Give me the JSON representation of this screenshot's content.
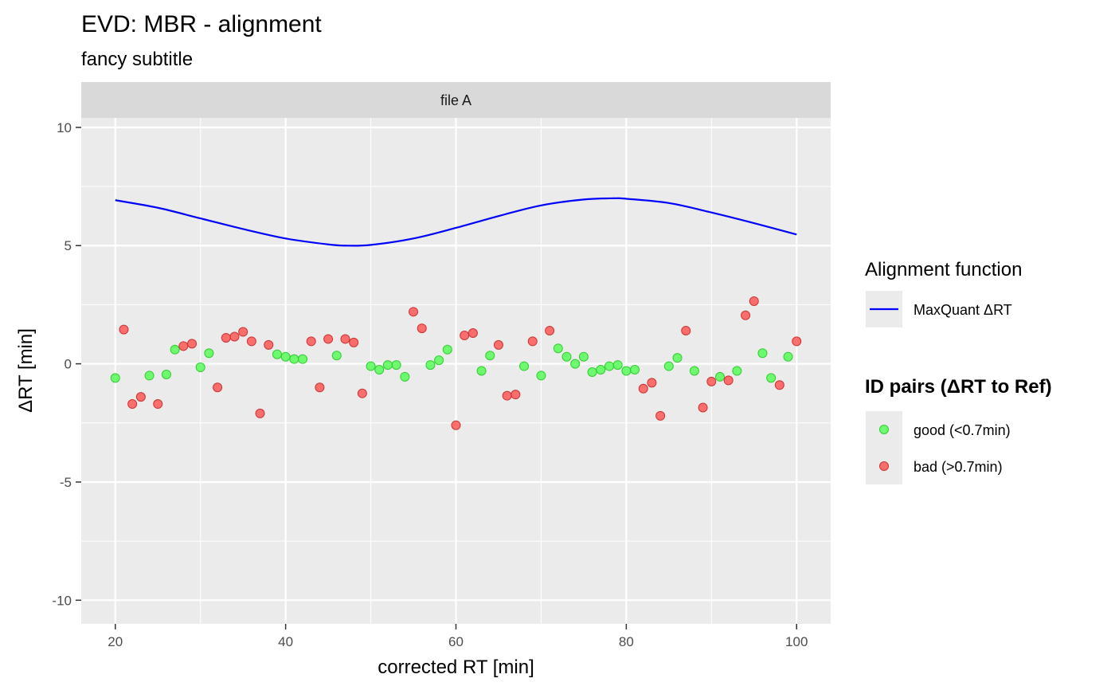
{
  "chart_data": {
    "type": "scatter",
    "title": "EVD: MBR - alignment",
    "subtitle": "fancy subtitle",
    "facet": "file A",
    "xlabel": "corrected RT [min]",
    "ylabel": "ΔRT [min]",
    "xlim": [
      16,
      104
    ],
    "ylim": [
      -11,
      10.4
    ],
    "xticks": [
      20,
      40,
      60,
      80,
      100
    ],
    "xtick_labels": [
      "20",
      "40",
      "60",
      "80",
      "100"
    ],
    "yticks": [
      10,
      5,
      0,
      -5,
      -10
    ],
    "ytick_labels": [
      "10",
      "5",
      "0",
      "-5",
      "-10"
    ],
    "grid": true,
    "legend_position": "right",
    "colors": {
      "panel": "#ebebeb",
      "strip": "#d9d9d9",
      "grid": "#ffffff",
      "line": "#0000ff",
      "good": "#44ff44",
      "bad": "#ff4444"
    },
    "line_series": {
      "name": "MaxQuant ΔRT",
      "x": [
        20,
        25,
        30,
        35,
        40,
        45,
        47,
        50,
        55,
        60,
        65,
        70,
        75,
        78.5,
        80,
        85,
        90,
        95,
        100
      ],
      "y": [
        6.92,
        6.6,
        6.15,
        5.7,
        5.3,
        5.05,
        5.0,
        5.03,
        5.3,
        5.75,
        6.25,
        6.7,
        6.95,
        7.0,
        6.98,
        6.8,
        6.4,
        5.95,
        5.47
      ]
    },
    "legend_line": {
      "title": "Alignment function",
      "label": "MaxQuant ΔRT"
    },
    "legend_points": {
      "title": "ID pairs (ΔRT to Ref)",
      "good_label": "good (<0.7min)",
      "bad_label": "bad (>0.7min)"
    },
    "series": [
      {
        "name": "good (<0.7min)",
        "points": [
          [
            20,
            -0.6
          ],
          [
            24,
            -0.5
          ],
          [
            26,
            -0.45
          ],
          [
            27,
            0.6
          ],
          [
            30,
            -0.15
          ],
          [
            31,
            0.45
          ],
          [
            39,
            0.4
          ],
          [
            40,
            0.3
          ],
          [
            41,
            0.2
          ],
          [
            42,
            0.2
          ],
          [
            46,
            0.35
          ],
          [
            50,
            -0.1
          ],
          [
            51,
            -0.25
          ],
          [
            52,
            -0.05
          ],
          [
            53,
            -0.05
          ],
          [
            54,
            -0.55
          ],
          [
            57,
            -0.05
          ],
          [
            58,
            0.15
          ],
          [
            59,
            0.6
          ],
          [
            63,
            -0.3
          ],
          [
            64,
            0.35
          ],
          [
            68,
            -0.1
          ],
          [
            70,
            -0.5
          ],
          [
            72,
            0.65
          ],
          [
            73,
            0.3
          ],
          [
            74,
            0.0
          ],
          [
            75,
            0.3
          ],
          [
            76,
            -0.35
          ],
          [
            77,
            -0.25
          ],
          [
            78,
            -0.1
          ],
          [
            79,
            -0.05
          ],
          [
            80,
            -0.3
          ],
          [
            81,
            -0.25
          ],
          [
            85,
            -0.1
          ],
          [
            86,
            0.25
          ],
          [
            88,
            -0.3
          ],
          [
            91,
            -0.55
          ],
          [
            93,
            -0.3
          ],
          [
            96,
            0.45
          ],
          [
            97,
            -0.6
          ],
          [
            99,
            0.3
          ]
        ]
      },
      {
        "name": "bad (>0.7min)",
        "points": [
          [
            21,
            1.45
          ],
          [
            22,
            -1.7
          ],
          [
            23,
            -1.4
          ],
          [
            25,
            -1.7
          ],
          [
            28,
            0.75
          ],
          [
            29,
            0.85
          ],
          [
            32,
            -1.0
          ],
          [
            33,
            1.1
          ],
          [
            34,
            1.15
          ],
          [
            35,
            1.35
          ],
          [
            36,
            0.95
          ],
          [
            37,
            -2.1
          ],
          [
            38,
            0.8
          ],
          [
            43,
            0.95
          ],
          [
            44,
            -1.0
          ],
          [
            45,
            1.05
          ],
          [
            47,
            1.05
          ],
          [
            48,
            0.9
          ],
          [
            49,
            -1.25
          ],
          [
            55,
            2.2
          ],
          [
            56,
            1.5
          ],
          [
            60,
            -2.6
          ],
          [
            61,
            1.2
          ],
          [
            62,
            1.3
          ],
          [
            65,
            0.8
          ],
          [
            66,
            -1.35
          ],
          [
            67,
            -1.3
          ],
          [
            69,
            0.95
          ],
          [
            71,
            1.4
          ],
          [
            82,
            -1.05
          ],
          [
            83,
            -0.8
          ],
          [
            84,
            -2.2
          ],
          [
            87,
            1.4
          ],
          [
            89,
            -1.85
          ],
          [
            90,
            -0.75
          ],
          [
            92,
            -0.7
          ],
          [
            94,
            2.05
          ],
          [
            95,
            2.65
          ],
          [
            98,
            -0.9
          ],
          [
            100,
            0.95
          ]
        ]
      }
    ]
  }
}
